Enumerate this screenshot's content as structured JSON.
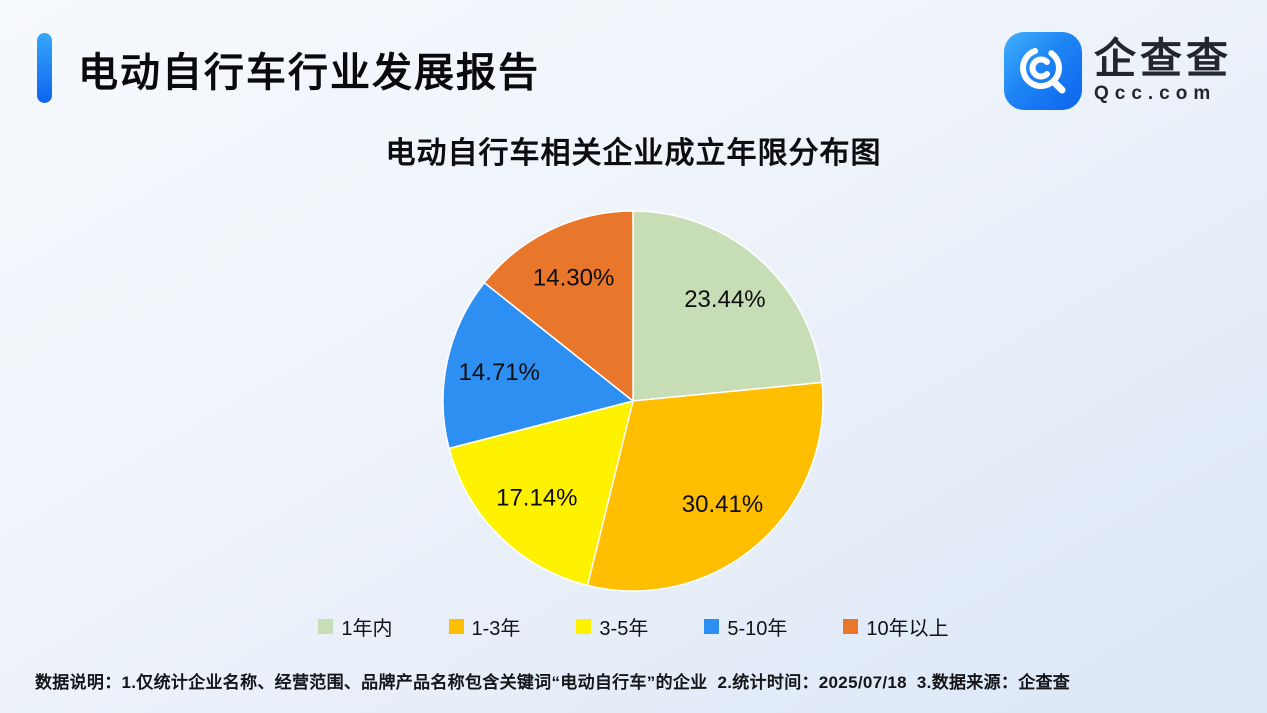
{
  "header": {
    "title": "电动自行车行业发展报告",
    "accent_color": "#1673f0"
  },
  "logo": {
    "icon": "qcc-magnifier-icon",
    "name_cn": "企查查",
    "domain": "Qcc.com",
    "icon_color": "#1e85f5"
  },
  "chart_data": {
    "type": "pie",
    "title": "电动自行车相关企业成立年限分布图",
    "categories": [
      "1年内",
      "1-3年",
      "3-5年",
      "5-10年",
      "10年以上"
    ],
    "values": [
      23.44,
      30.41,
      17.14,
      14.71,
      14.3
    ],
    "labels": [
      "23.44%",
      "30.41%",
      "17.14%",
      "14.71%",
      "14.30%"
    ],
    "colors": [
      "#C7DDB5",
      "#FFBE00",
      "#FFF200",
      "#2E8FF2",
      "#E8772C"
    ],
    "start_angle_deg": 0,
    "direction": "clockwise",
    "legend_position": "bottom",
    "label_color": "#0d0d0d",
    "slice_stroke": "#ffffff"
  },
  "footer": {
    "note": "数据说明：1.仅统计企业名称、经营范围、品牌产品名称包含关键词“电动自行车”的企业  2.统计时间：2025/07/18  3.数据来源：企查查"
  }
}
